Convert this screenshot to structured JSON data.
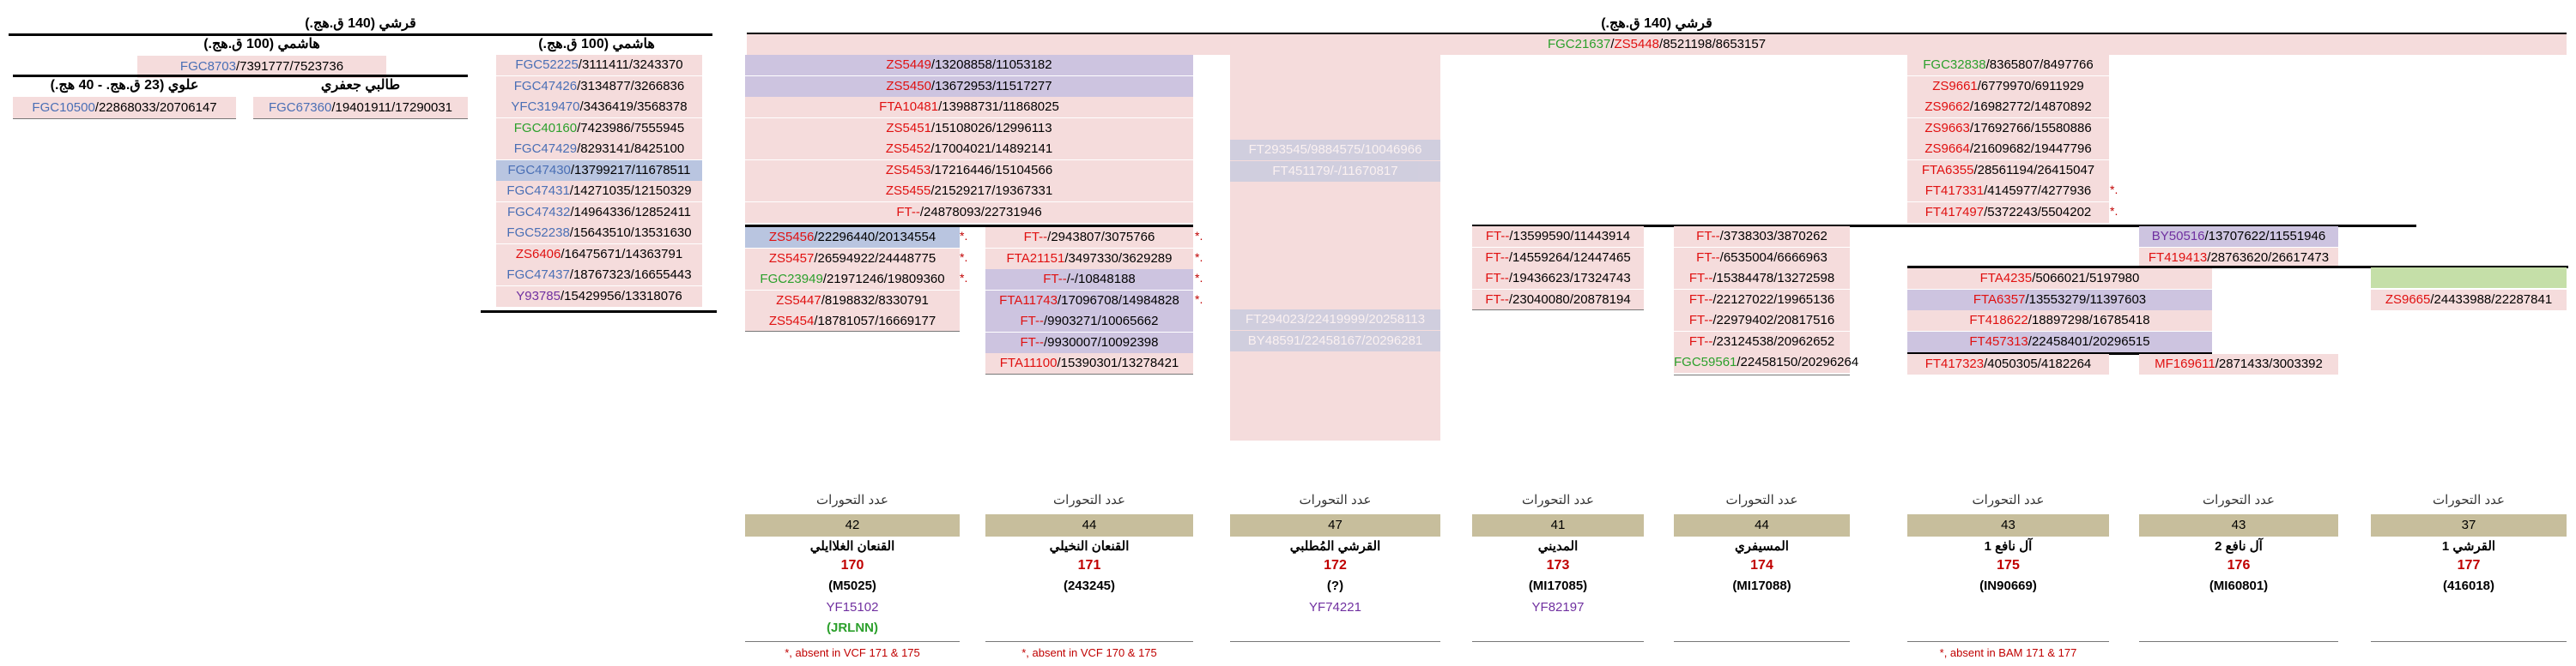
{
  "headers": {
    "quraishi_left": "قرشي (140 ق.هج.)",
    "hashimi_a": "هاشمي (100 ق.هج.)",
    "hashimi_b": "هاشمي (100 ق.هج.)",
    "alawi": "علوي (23 ق.هج. - 40 هج.)",
    "talibi": "طالبي جعفري",
    "quraishi_right": "قرشي (140 ق.هج.)"
  },
  "left": {
    "fgc8703": {
      "a": "FGC8703",
      "b": "/7391777/7523736"
    },
    "alawi_row": {
      "a": "FGC10500",
      "b": "/22868033/20706147"
    },
    "talibi_row": {
      "a": "FGC67360",
      "b": "/19401911/17290031"
    },
    "hashimi_list": [
      {
        "a": "FGC52225",
        "b": "/3111411/3243370",
        "c": "cbl",
        "bg": "pink"
      },
      {
        "a": "FGC47426",
        "b": "/3134877/3266836",
        "c": "cbl",
        "bg": "pink"
      },
      {
        "a": "YFC319470",
        "b": "/3436419/3568378",
        "c": "cbl",
        "bg": "pink"
      },
      {
        "a": "FGC40160",
        "b": "/7423986/7555945",
        "c": "cgr",
        "bg": "pink"
      },
      {
        "a": "FGC47429",
        "b": "/8293141/8425100",
        "c": "cbl",
        "bg": "pink"
      },
      {
        "a": "FGC47430",
        "b": "/13799217/11678511",
        "c": "cbl",
        "bg": "blu"
      },
      {
        "a": "FGC47431",
        "b": "/14271035/12150329",
        "c": "cbl",
        "bg": "pink"
      },
      {
        "a": "FGC47432",
        "b": "/14964336/12852411",
        "c": "cbl",
        "bg": "pink"
      },
      {
        "a": "FGC52238",
        "b": "/15643510/13531630",
        "c": "cbl",
        "bg": "pink"
      },
      {
        "a": "ZS6406",
        "b": "/16475671/14363791",
        "c": "crd",
        "bg": "pink"
      },
      {
        "a": "FGC47437",
        "b": "/18767323/16655443",
        "c": "cbl",
        "bg": "pink"
      },
      {
        "a": "Y93785",
        "b": "/15429956/13318076",
        "c": "cpu",
        "bg": "pink"
      }
    ]
  },
  "top_row": {
    "a": "FGC21637",
    "sep": "/",
    "b": "ZS5448",
    "c": "/8521198/8653157"
  },
  "col1_top": [
    {
      "a": "ZS5449",
      "b": "/13208858/11053182",
      "bg": "lav"
    },
    {
      "a": "ZS5450",
      "b": "/13672953/11517277",
      "bg": "lav"
    },
    {
      "a": "FTA10481",
      "b": "/13988731/11868025",
      "bg": "pink"
    },
    {
      "a": "ZS5451",
      "b": "/15108026/12996113",
      "bg": "pink"
    },
    {
      "a": "ZS5452",
      "b": "/17004021/14892141",
      "bg": "pink"
    },
    {
      "a": "ZS5453",
      "b": "/17216446/15104566",
      "bg": "pink"
    },
    {
      "a": "ZS5455",
      "b": "/21529217/19367331",
      "bg": "pink"
    },
    {
      "a": "FT--",
      "b": "/24878093/22731946",
      "bg": "pink"
    }
  ],
  "col1_a": [
    {
      "a": "ZS5456",
      "b": "/22296440/20134554",
      "c": "crd",
      "bg": "blu",
      "star": "*."
    },
    {
      "a": "ZS5457",
      "b": "/26594922/24448775",
      "c": "crd",
      "bg": "pink",
      "star": "*."
    },
    {
      "a": "FGC23949",
      "b": "/21971246/19809360",
      "c": "cgr",
      "bg": "pink",
      "star": "*."
    },
    {
      "a": "ZS5447",
      "b": "/8198832/8330791",
      "c": "crd",
      "bg": "pink",
      "star": ""
    },
    {
      "a": "ZS5454",
      "b": "/18781057/16669177",
      "c": "crd",
      "bg": "pink",
      "star": ""
    }
  ],
  "col1_b": [
    {
      "a": "FT--",
      "b": "/2943807/3075766",
      "c": "crd",
      "bg": "pink",
      "star": "*."
    },
    {
      "a": "FTA21151",
      "b": "/3497330/3629289",
      "c": "crd",
      "bg": "pink",
      "star": "*."
    },
    {
      "a": "FT--",
      "b": "/-/10848188",
      "c": "crd",
      "bg": "lav",
      "star": "*."
    },
    {
      "a": "FTA11743",
      "b": "/17096708/14984828",
      "c": "crd",
      "bg": "lav",
      "star": "*."
    },
    {
      "a": "FT--",
      "b": "/9903271/10065662",
      "c": "crd",
      "bg": "lav",
      "star": ""
    },
    {
      "a": "FT--",
      "b": "/9930007/10092398",
      "c": "crd",
      "bg": "lav",
      "star": ""
    },
    {
      "a": "FTA11100",
      "b": "/15390301/13278421",
      "c": "crd",
      "bg": "pink",
      "star": ""
    }
  ],
  "col3_ghost": [
    {
      "t": "FT293545/9884575/10046966",
      "bg": "blu"
    },
    {
      "t": "FT451179/-/11670817",
      "bg": "blu"
    },
    {
      "t": "FT294023/22419999/20258113",
      "bg": "blu"
    },
    {
      "t": "BY48591/22458167/20296281",
      "bg": "blu"
    }
  ],
  "col4": [
    {
      "a": "FT--",
      "b": "/13599590/11443914"
    },
    {
      "a": "FT--",
      "b": "/14559264/12447465"
    },
    {
      "a": "FT--",
      "b": "/19436623/17324743"
    },
    {
      "a": "FT--",
      "b": "/23040080/20878194"
    }
  ],
  "col5": [
    {
      "a": "FT--",
      "b": "/3738303/3870262",
      "c": "crd"
    },
    {
      "a": "FT--",
      "b": "/6535004/6666963",
      "c": "crd"
    },
    {
      "a": "FT--",
      "b": "/15384478/13272598",
      "c": "crd"
    },
    {
      "a": "FT--",
      "b": "/22127022/19965136",
      "c": "crd"
    },
    {
      "a": "FT--",
      "b": "/22979402/20817516",
      "c": "crd"
    },
    {
      "a": "FT--",
      "b": "/23124538/20962652",
      "c": "crd"
    },
    {
      "a": "FGC59561",
      "b": "/22458150/20296264",
      "c": "cgr"
    }
  ],
  "col6_top": [
    {
      "a": "FGC32838",
      "b": "/8365807/8497766",
      "c": "cgr",
      "star": ""
    },
    {
      "a": "ZS9661",
      "b": "/6779970/6911929",
      "c": "crd",
      "star": ""
    },
    {
      "a": "ZS9662",
      "b": "/16982772/14870892",
      "c": "crd",
      "star": ""
    },
    {
      "a": "ZS9663",
      "b": "/17692766/15580886",
      "c": "crd",
      "star": ""
    },
    {
      "a": "ZS9664",
      "b": "/21609682/19447796",
      "c": "crd",
      "star": ""
    },
    {
      "a": "FTA6355",
      "b": "/28561194/26415047",
      "c": "crd",
      "star": ""
    },
    {
      "a": "FT417331",
      "b": "/4145977/4277936",
      "c": "crd",
      "star": "*."
    },
    {
      "a": "FT417497",
      "b": "/5372243/5504202",
      "c": "crd",
      "star": "*."
    }
  ],
  "col6_right": [
    {
      "a": "BY50516",
      "b": "/13707622/11551946",
      "c": "cpu",
      "bg": "lav"
    },
    {
      "a": "FT419413",
      "b": "/28763620/26617473",
      "c": "crd",
      "bg": "pink"
    }
  ],
  "col6_mid": [
    {
      "a": "FTA4235",
      "b": "/5066021/5197980",
      "bg": "pink"
    },
    {
      "a": "FTA6357",
      "b": "/13553279/11397603",
      "bg": "lav"
    },
    {
      "a": "FT418622",
      "b": "/18897298/16785418",
      "bg": "pink"
    },
    {
      "a": "FT457313",
      "b": "/22458401/20296515",
      "bg": "lav"
    }
  ],
  "col6_bottom": [
    {
      "a": "FT417323",
      "b": "/4050305/4182264"
    },
    {
      "a": "MF169611",
      "b": "/2871433/3003392"
    }
  ],
  "far_right": {
    "a": "ZS9665",
    "b": "/24433988/22287841"
  },
  "summary_label": "عدد التحورات",
  "samples": [
    {
      "count": "42",
      "name": "القنعان الغلاايلي",
      "num": "170",
      "code": "(M5025)",
      "snp": "YF15102",
      "grn": "(JRLNN)",
      "note": "*, absent in VCF 171 & 175"
    },
    {
      "count": "44",
      "name": "القنعان النخيلي",
      "num": "171",
      "code": "(243245)",
      "snp": "",
      "grn": "",
      "note": "*, absent in VCF 170 & 175"
    },
    {
      "count": "47",
      "name": "القرشي المُطلبي",
      "num": "172",
      "code": "(?)",
      "snp": "YF74221",
      "grn": "",
      "note": ""
    },
    {
      "count": "41",
      "name": "المديني",
      "num": "173",
      "code": "(MI17085)",
      "snp": "YF82197",
      "grn": "",
      "note": ""
    },
    {
      "count": "44",
      "name": "المسيفري",
      "num": "174",
      "code": "(MI17088)",
      "snp": "",
      "grn": "",
      "note": ""
    },
    {
      "count": "43",
      "name": "آل نافع 1",
      "num": "175",
      "code": "(IN90669)",
      "snp": "",
      "grn": "",
      "note": "*, absent in BAM 171 & 177"
    },
    {
      "count": "43",
      "name": "آل نافع 2",
      "num": "176",
      "code": "(MI60801)",
      "snp": "",
      "grn": "",
      "note": ""
    },
    {
      "count": "37",
      "name": "القرشي 1",
      "num": "177",
      "code": "(416018)",
      "snp": "",
      "grn": "",
      "note": ""
    }
  ],
  "colors": {
    "pink": "#f5dcdc",
    "lavender": "#cdc4e0",
    "blue": "#b9c5e0",
    "green": "#c5dfa8",
    "khaki": "#c7be9c",
    "red": "#e01010",
    "purple": "#7030a0",
    "green_text": "#2ca02c"
  }
}
